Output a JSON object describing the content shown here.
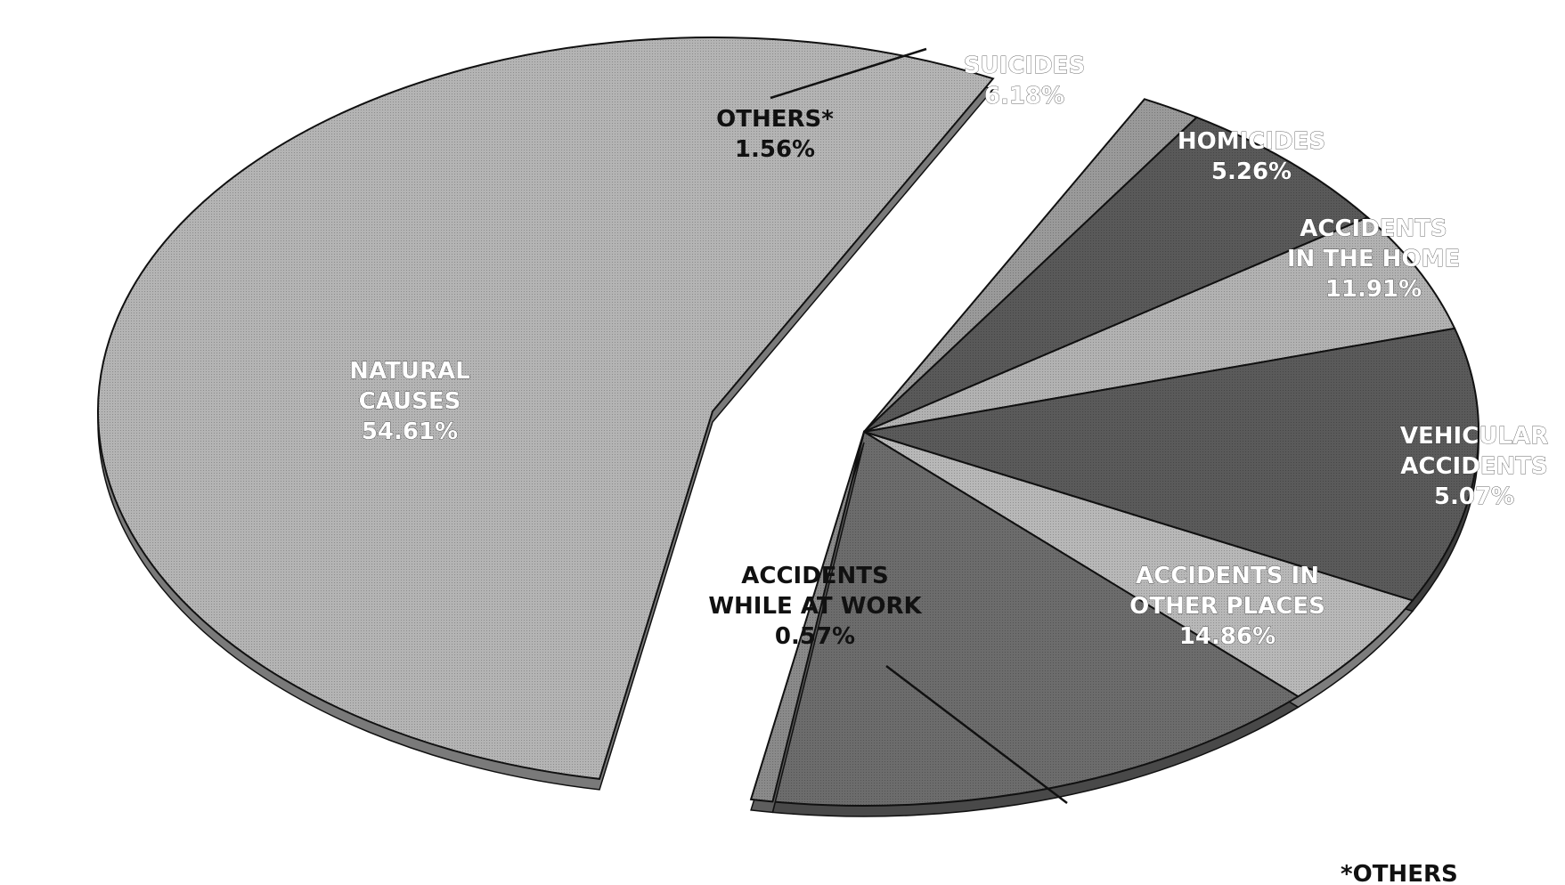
{
  "chart_data": {
    "type": "pie",
    "exploded": true,
    "three_d": true,
    "slices": [
      {
        "name": "NATURAL CAUSES",
        "value": 54.61,
        "label_lines": [
          "NATURAL",
          "CAUSES",
          "54.61%"
        ],
        "color": "#b4b4b4",
        "label_style": "light"
      },
      {
        "name": "OTHERS*",
        "value": 1.56,
        "label_lines": [
          "OTHERS*",
          "1.56%"
        ],
        "color": "#9a9a9a",
        "label_style": "dark"
      },
      {
        "name": "SUICIDES",
        "value": 6.18,
        "label_lines": [
          "SUICIDES",
          "6.18%"
        ],
        "color": "#595959",
        "label_style": "light"
      },
      {
        "name": "HOMICIDES",
        "value": 5.26,
        "label_lines": [
          "HOMICIDES",
          "5.26%"
        ],
        "color": "#b2b2b2",
        "label_style": "light"
      },
      {
        "name": "ACCIDENTS IN THE HOME",
        "value": 11.91,
        "label_lines": [
          "ACCIDENTS",
          "IN THE HOME",
          "11.91%"
        ],
        "color": "#5a5a5a",
        "label_style": "light"
      },
      {
        "name": "VEHICULAR ACCIDENTS",
        "value": 5.07,
        "label_lines": [
          "VEHICULAR",
          "ACCIDENTS",
          "5.07%"
        ],
        "color": "#b8b8b8",
        "label_style": "light"
      },
      {
        "name": "ACCIDENTS IN OTHER PLACES",
        "value": 14.86,
        "label_lines": [
          "ACCIDENTS IN",
          "OTHER PLACES",
          "14.86%"
        ],
        "color": "#6c6c6c",
        "label_style": "light"
      },
      {
        "name": "ACCIDENTS WHILE AT WORK",
        "value": 0.57,
        "label_lines": [
          "ACCIDENTS",
          "WHILE AT WORK",
          "0.57%"
        ],
        "color": "#8a8a8a",
        "label_style": "dark"
      }
    ],
    "footnote": "*OTHERS"
  }
}
